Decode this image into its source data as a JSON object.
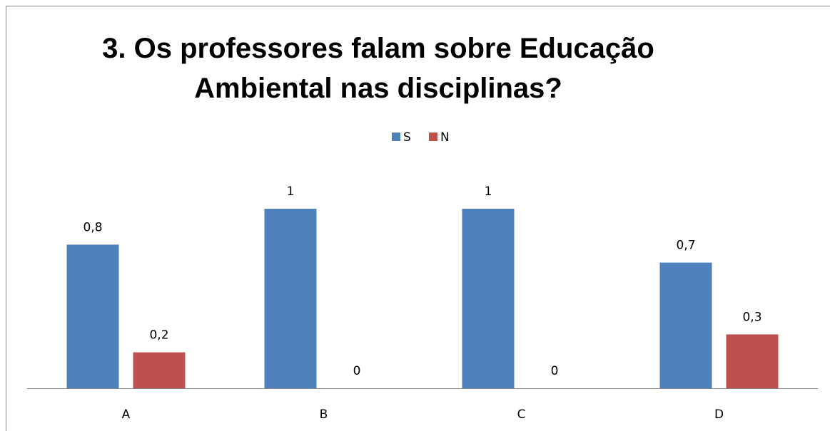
{
  "chart_data": {
    "type": "bar",
    "title": "3. Os professores falam sobre Educação\nAmbiental nas disciplinas?",
    "categories": [
      "A",
      "B",
      "C",
      "D"
    ],
    "series": [
      {
        "name": "S",
        "color": "#4f81bd",
        "values": [
          0.8,
          1,
          1,
          0.7
        ],
        "value_labels": [
          "0,8",
          "1",
          "1",
          "0,7"
        ]
      },
      {
        "name": "N",
        "color": "#c0504d",
        "values": [
          0.2,
          0,
          0,
          0.3
        ],
        "value_labels": [
          "0,2",
          "0",
          "0",
          "0,3"
        ]
      }
    ],
    "legend": "top"
  }
}
